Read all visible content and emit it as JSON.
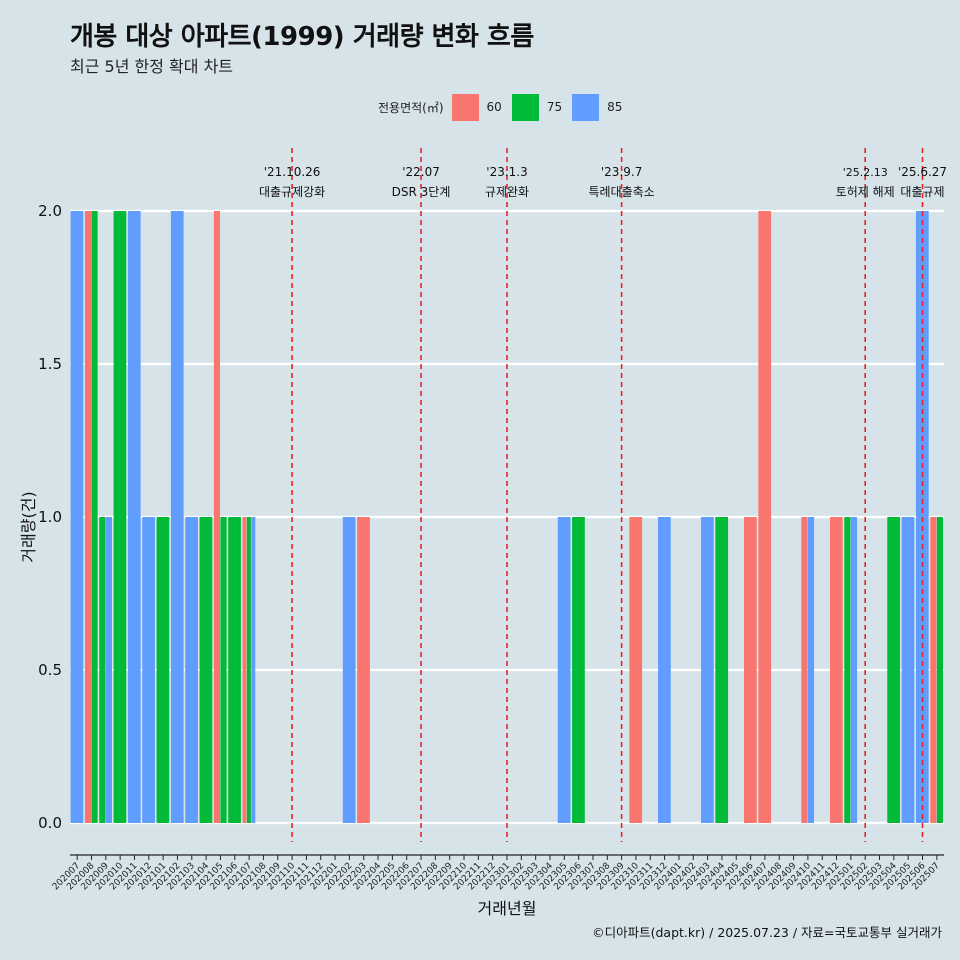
{
  "title": "개봉 대상 아파트(1999) 거래량 변화 흐름",
  "subtitle": "최근 5년 한정 확대 차트",
  "legend": {
    "title": "전용면적(㎡)",
    "items": [
      {
        "label": "60",
        "color": "#F8766D"
      },
      {
        "label": "75",
        "color": "#00BA38"
      },
      {
        "label": "85",
        "color": "#619CFF"
      }
    ]
  },
  "footer": "©디아파트(dapt.kr) / 2025.07.23 / 자료=국토교통부 실거래가",
  "chart_data": {
    "type": "bar",
    "title": "개봉 대상 아파트(1999) 거래량 변화 흐름",
    "subtitle": "최근 5년 한정 확대 차트",
    "xlabel": "거래년월",
    "ylabel": "거래량(건)",
    "ylim": [
      0,
      2
    ],
    "yticks": [
      "0.0",
      "0.5",
      "1.0",
      "1.5",
      "2.0"
    ],
    "categories": [
      "202007",
      "202008",
      "202009",
      "202010",
      "202011",
      "202012",
      "202101",
      "202102",
      "202103",
      "202104",
      "202105",
      "202106",
      "202107",
      "202108",
      "202109",
      "202110",
      "202111",
      "202112",
      "202201",
      "202202",
      "202203",
      "202204",
      "202205",
      "202206",
      "202207",
      "202208",
      "202209",
      "202210",
      "202211",
      "202212",
      "202301",
      "202302",
      "202303",
      "202304",
      "202305",
      "202306",
      "202307",
      "202308",
      "202309",
      "202310",
      "202311",
      "202312",
      "202401",
      "202402",
      "202403",
      "202404",
      "202405",
      "202406",
      "202407",
      "202408",
      "202409",
      "202410",
      "202411",
      "202412",
      "202501",
      "202502",
      "202503",
      "202504",
      "202505",
      "202506",
      "202507"
    ],
    "series": [
      {
        "name": "60",
        "color": "#F8766D",
        "values": [
          null,
          2,
          null,
          null,
          null,
          null,
          null,
          null,
          null,
          null,
          2,
          null,
          1,
          null,
          null,
          null,
          null,
          null,
          null,
          null,
          1,
          null,
          null,
          null,
          null,
          null,
          null,
          null,
          null,
          null,
          null,
          null,
          null,
          null,
          null,
          null,
          null,
          null,
          null,
          1,
          null,
          null,
          null,
          null,
          null,
          null,
          null,
          1,
          2,
          null,
          null,
          1,
          null,
          1,
          null,
          null,
          null,
          null,
          null,
          null,
          1
        ]
      },
      {
        "name": "75",
        "color": "#00BA38",
        "values": [
          null,
          2,
          1,
          2,
          null,
          null,
          1,
          null,
          null,
          1,
          1,
          1,
          1,
          null,
          null,
          null,
          null,
          null,
          null,
          null,
          null,
          null,
          null,
          null,
          null,
          null,
          null,
          null,
          null,
          null,
          null,
          null,
          null,
          null,
          null,
          1,
          null,
          null,
          null,
          null,
          null,
          null,
          null,
          null,
          null,
          1,
          null,
          null,
          null,
          null,
          null,
          null,
          null,
          null,
          1,
          null,
          null,
          1,
          null,
          null,
          1
        ]
      },
      {
        "name": "85",
        "color": "#619CFF",
        "values": [
          2,
          null,
          1,
          null,
          2,
          1,
          null,
          2,
          1,
          null,
          null,
          null,
          1,
          null,
          null,
          null,
          null,
          null,
          null,
          1,
          null,
          null,
          null,
          null,
          null,
          null,
          null,
          null,
          null,
          null,
          null,
          null,
          null,
          null,
          1,
          null,
          null,
          null,
          null,
          null,
          null,
          1,
          null,
          null,
          1,
          null,
          null,
          null,
          null,
          null,
          null,
          1,
          null,
          null,
          1,
          null,
          null,
          null,
          1,
          2,
          null
        ]
      }
    ],
    "events": [
      {
        "month": "202110",
        "date": "'21.10.26",
        "text": "대출규제강화"
      },
      {
        "month": "202207",
        "date": "'22.07",
        "text": "DSR 3단계"
      },
      {
        "month": "202301",
        "date": "'23.1.3",
        "text": "규제완화"
      },
      {
        "month": "202309",
        "date": "'23.9.7",
        "text": "특례대출축소"
      },
      {
        "month": "202502",
        "date": "'25.2.13",
        "text": "토허제 해제"
      },
      {
        "month": "202506",
        "date": "'25.6.27",
        "text": "대출규제"
      }
    ],
    "grid": true,
    "legend_position": "top"
  }
}
